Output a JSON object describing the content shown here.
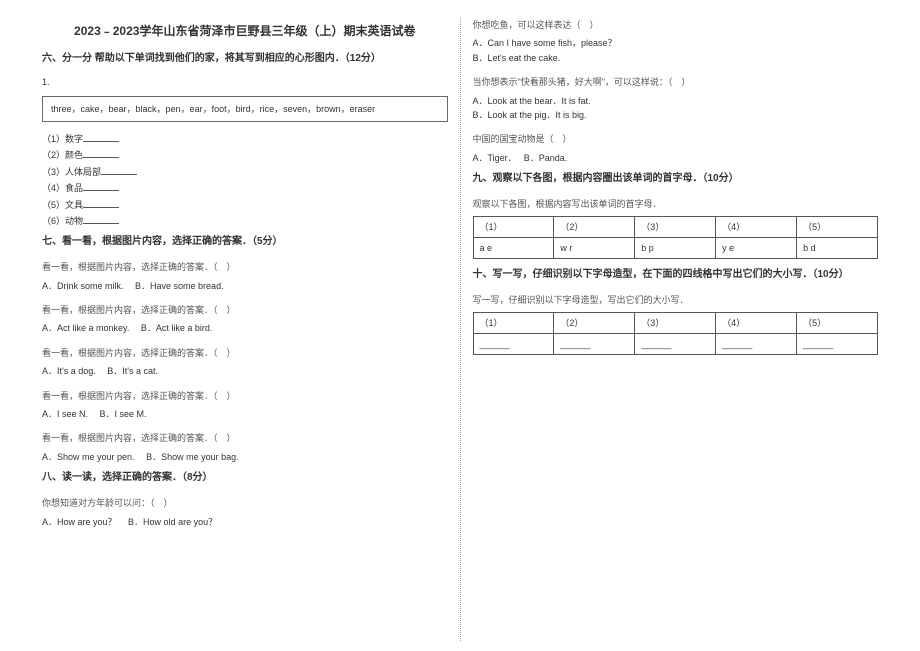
{
  "title": "2023﹣2023学年山东省菏泽市巨野县三年级（上）期末英语试卷",
  "section6": {
    "heading": "六、分一分 帮助以下单词找到他们的家，将其写到相应的心形图内．（12分）",
    "qnum": "1.",
    "words": "three，cake，bear，black，pen，ear，foot，bird，rice，seven，brown，eraser",
    "cats": [
      "（1）数字",
      "（2）颜色",
      "（3）人体局部",
      "（4）食品",
      "（5）文具",
      "（6）动物"
    ]
  },
  "section7": {
    "heading": "七、看一看，根据图片内容，选择正确的答案．（5分）",
    "items": [
      {
        "stem": "看一看，根据图片内容，选择正确的答案．（　）",
        "a": "A．Drink some milk.",
        "b": "B．Have some bread."
      },
      {
        "stem": "看一看，根据图片内容，选择正确的答案．（　）",
        "a": "A．Act like a monkey.",
        "b": "B．Act like a bird."
      },
      {
        "stem": "看一看，根据图片内容，选择正确的答案．（　）",
        "a": "A．It's a dog.",
        "b": "B．It's a cat."
      },
      {
        "stem": "看一看，根据图片内容，选择正确的答案．（　）",
        "a": "A．I see N.",
        "b": "B．I see M."
      },
      {
        "stem": "看一看，根据图片内容，选择正确的答案．（　）",
        "a": "A．Show me your pen.",
        "b": "B．Show me your bag."
      }
    ]
  },
  "section8": {
    "heading": "八、读一读，选择正确的答案．（8分）",
    "items": [
      {
        "stem": "你想知道对方年龄可以问：（　）",
        "a": "A．How are you？",
        "b": "B．How old are you？"
      },
      {
        "stem": "你想吃鱼，可以这样表达（　）",
        "a": "A．Can I have some fish，please？",
        "b": "B．Let's eat the cake."
      },
      {
        "stem": "当你想表示\"快看那头猪，好大啊\"，可以这样说：（　）",
        "a": "A．Look at the bear．It is fat.",
        "b": "B．Look at the pig．It is big."
      },
      {
        "stem": "中国的国宝动物是（　）",
        "a": "A．Tiger．",
        "b": "B．Panda."
      }
    ]
  },
  "section9": {
    "heading": "九、观察以下各图，根据内容圈出该单词的首字母．（10分）",
    "stem": "观察以下各图，根据内容写出该单词的首字母．",
    "table": {
      "r1": [
        "（1）",
        "（2）",
        "（3）",
        "（4）",
        "（5）"
      ],
      "r2": [
        "a  e",
        "w  r",
        "b  p",
        "y  e",
        "b  d"
      ]
    }
  },
  "section10": {
    "heading": "十、写一写，仔细识别以下字母造型，在下面的四线格中写出它们的大小写．（10分）",
    "stem": "写一写，仔细识别以下字母造型，写出它们的大小写．",
    "table": {
      "r1": [
        "（1）",
        "（2）",
        "（3）",
        "（4）",
        "（5）"
      ],
      "r2": [
        "______",
        "______",
        "______",
        "______",
        "______"
      ]
    }
  }
}
